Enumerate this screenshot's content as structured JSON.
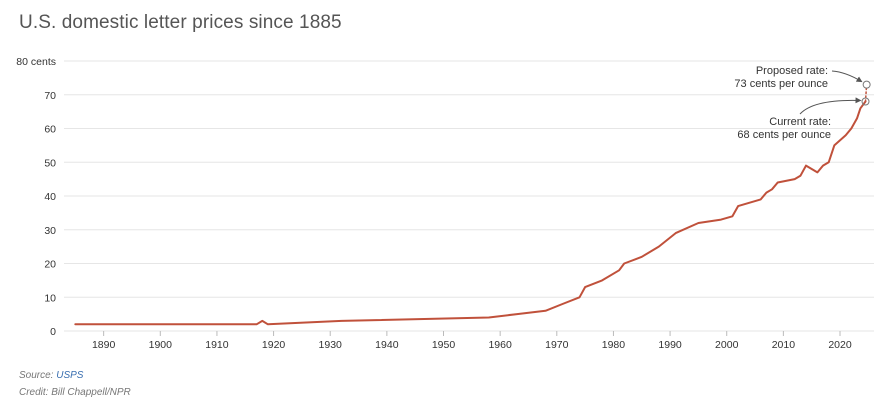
{
  "title": "U.S. domestic letter prices since 1885",
  "source": {
    "label": "Source:",
    "link_text": "USPS"
  },
  "credit": "Credit: Bill Chappell/NPR",
  "colors": {
    "line": "#c0513b",
    "annotation_arrow": "#555555",
    "link": "#3a6fb0"
  },
  "chart_data": {
    "type": "line",
    "title": "U.S. domestic letter prices since 1885",
    "xlabel": "",
    "ylabel": "",
    "xlim": [
      1883,
      2026
    ],
    "ylim": [
      0,
      80
    ],
    "yticks": [
      0,
      10,
      20,
      30,
      40,
      50,
      60,
      70,
      80
    ],
    "ytick_labels": [
      "0",
      "10",
      "20",
      "30",
      "40",
      "50",
      "60",
      "70",
      "80 cents"
    ],
    "xticks": [
      1890,
      1900,
      1910,
      1920,
      1930,
      1940,
      1950,
      1960,
      1970,
      1980,
      1990,
      2000,
      2010,
      2020
    ],
    "grid": true,
    "series": [
      {
        "values_x": [
          1885,
          1917,
          1918,
          1919,
          1932,
          1958,
          1963,
          1968,
          1971,
          1974,
          1975,
          1978,
          1981,
          1981.9,
          1985,
          1988,
          1991,
          1995,
          1999,
          2001,
          2002,
          2006,
          2007,
          2008,
          2009,
          2012,
          2013,
          2014,
          2016,
          2017,
          2018,
          2019,
          2021,
          2022,
          2023,
          2023.6,
          2024.5
        ],
        "values_y": [
          2,
          2,
          3,
          2,
          3,
          4,
          5,
          6,
          8,
          10,
          13,
          15,
          18,
          20,
          22,
          25,
          29,
          32,
          33,
          34,
          37,
          39,
          41,
          42,
          44,
          45,
          46,
          49,
          47,
          49,
          50,
          55,
          58,
          60,
          63,
          66,
          68
        ]
      },
      {
        "style": "dotted",
        "values_x": [
          2024.5,
          2024.7
        ],
        "values_y": [
          68,
          73
        ]
      }
    ],
    "annotations": [
      {
        "text_lines": [
          "Proposed rate:",
          "73 cents per ounce"
        ],
        "x": 2024.7,
        "y": 73
      },
      {
        "text_lines": [
          "Current rate:",
          "68 cents per ounce"
        ],
        "x": 2024.5,
        "y": 68
      }
    ]
  }
}
